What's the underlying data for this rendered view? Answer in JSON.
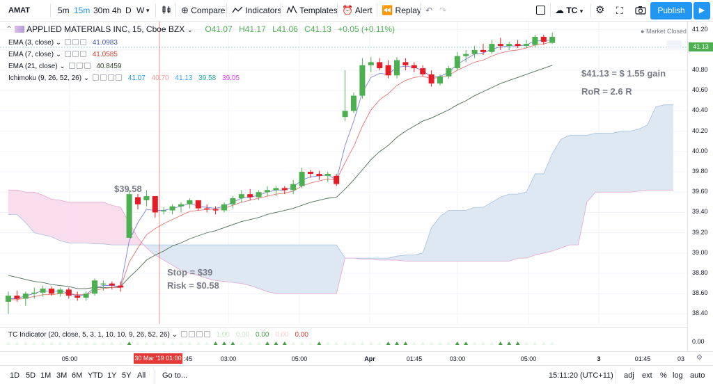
{
  "toolbar": {
    "symbol": "AMAT",
    "intervals": [
      "5m",
      "15m",
      "30m",
      "4h",
      "D",
      "W"
    ],
    "active_interval": "15m",
    "compare": "Compare",
    "indicators": "Indicators",
    "templates": "Templates",
    "alert": "Alert",
    "replay": "Replay",
    "account": "TC",
    "publish": "Publish"
  },
  "header": {
    "title": "APPLIED MATERIALS INC, 15, Cboe BZX",
    "open": "O41.07",
    "high": "H41.17",
    "low": "L41.06",
    "close": "C41.13",
    "change": "+0.05 (+0.11%)",
    "market_status": "Market Closed"
  },
  "studies": [
    {
      "label": "EMA (3, close)",
      "values": [
        "41.0983"
      ],
      "colors": [
        "#3f51b5"
      ]
    },
    {
      "label": "EMA (7, close)",
      "values": [
        "41.0585"
      ],
      "colors": [
        "#e53935"
      ]
    },
    {
      "label": "EMA (21, close)",
      "values": [
        "40.8459"
      ],
      "colors": [
        "#2e3b2e"
      ]
    },
    {
      "label": "Ichimoku (9, 26, 52, 26)",
      "values": [
        "41.07",
        "40.70",
        "41.13",
        "39.58",
        "39.05"
      ],
      "colors": [
        "#2196f3",
        "#ef9a9a",
        "#42a5f5",
        "#26a69a",
        "#e040fb"
      ]
    }
  ],
  "tc_indicator": {
    "label": "TC Indicator (20, close, 5, 3, 1, 10, 10, 9, 26, 52, 26)",
    "values": [
      "1.00",
      "0.00",
      "0.00",
      "0.00",
      "0.00"
    ],
    "colors": [
      "#c8e6c9",
      "#c8e6c9",
      "#43a047",
      "#ffcdd2",
      "#e53935"
    ],
    "axis_label": "0.00"
  },
  "annotations": {
    "entry_price": "$39.58",
    "stop": "Stop = $39",
    "risk": "Risk = $0.58",
    "gain": "$41.13 = $ 1.55 gain",
    "ror": "RoR = 2.6 R"
  },
  "time_axis": {
    "labels": [
      "05:00",
      "30 Mar '19  01:00",
      ":45",
      "03:00",
      "05:00",
      "Apr",
      "01:45",
      "03:00",
      "05:00",
      "3",
      "01:45",
      "03"
    ]
  },
  "bottom": {
    "ranges": [
      "1D",
      "5D",
      "1M",
      "3M",
      "6M",
      "YTD",
      "1Y",
      "5Y",
      "All"
    ],
    "goto": "Go to...",
    "time": "15:11:20 (UTC+11)",
    "options": [
      "adj",
      "ext",
      "%",
      "log",
      "auto"
    ]
  },
  "colors": {
    "up": "#4caf50",
    "down": "#e51c23",
    "cloud_bull": "#dde8f3",
    "cloud_bear": "#f8dded",
    "accent": "#2196f3"
  },
  "chart_data": {
    "type": "candlestick",
    "ylim": [
      38.3,
      41.28
    ],
    "yticks": [
      "41.20",
      "41.00",
      "40.80",
      "40.60",
      "40.40",
      "40.20",
      "40.00",
      "39.80",
      "39.60",
      "39.40",
      "39.20",
      "39.00",
      "38.80",
      "38.60",
      "38.40"
    ],
    "last_price": "41.13",
    "ohlc": [
      [
        38.52,
        38.62,
        38.4,
        38.58
      ],
      [
        38.58,
        38.63,
        38.52,
        38.55
      ],
      [
        38.55,
        38.62,
        38.48,
        38.6
      ],
      [
        38.6,
        38.66,
        38.55,
        38.61
      ],
      [
        38.61,
        38.68,
        38.57,
        38.65
      ],
      [
        38.65,
        38.67,
        38.58,
        38.6
      ],
      [
        38.6,
        38.66,
        38.57,
        38.64
      ],
      [
        38.64,
        38.66,
        38.55,
        38.58
      ],
      [
        38.58,
        38.62,
        38.53,
        38.56
      ],
      [
        38.56,
        38.62,
        38.53,
        38.6
      ],
      [
        38.6,
        38.75,
        38.58,
        38.73
      ],
      [
        38.7,
        38.73,
        38.63,
        38.7
      ],
      [
        38.7,
        38.72,
        38.64,
        38.68
      ],
      [
        38.68,
        38.72,
        38.62,
        38.66
      ],
      [
        39.15,
        39.62,
        39.15,
        39.58
      ],
      [
        39.55,
        39.58,
        39.43,
        39.48
      ],
      [
        39.52,
        39.62,
        39.46,
        39.56
      ],
      [
        39.56,
        39.56,
        39.35,
        39.4
      ],
      [
        39.42,
        39.45,
        39.38,
        39.42
      ],
      [
        39.42,
        39.48,
        39.38,
        39.46
      ],
      [
        39.46,
        39.5,
        39.4,
        39.48
      ],
      [
        39.48,
        39.54,
        39.44,
        39.52
      ],
      [
        39.52,
        39.52,
        39.42,
        39.44
      ],
      [
        39.44,
        39.48,
        39.4,
        39.43
      ],
      [
        39.43,
        39.46,
        39.38,
        39.42
      ],
      [
        39.42,
        39.5,
        39.4,
        39.48
      ],
      [
        39.48,
        39.56,
        39.44,
        39.54
      ],
      [
        39.54,
        39.62,
        39.5,
        39.58
      ],
      [
        39.58,
        39.63,
        39.52,
        39.55
      ],
      [
        39.55,
        39.62,
        39.52,
        39.6
      ],
      [
        39.6,
        39.66,
        39.56,
        39.62
      ],
      [
        39.62,
        39.66,
        39.56,
        39.64
      ],
      [
        39.64,
        39.66,
        39.58,
        39.62
      ],
      [
        39.62,
        39.72,
        39.58,
        39.68
      ],
      [
        39.66,
        39.84,
        39.64,
        39.8
      ],
      [
        39.8,
        39.82,
        39.74,
        39.78
      ],
      [
        39.78,
        39.81,
        39.72,
        39.76
      ],
      [
        39.76,
        39.8,
        39.7,
        39.78
      ],
      [
        39.76,
        39.78,
        39.66,
        39.68
      ],
      [
        40.34,
        40.8,
        40.3,
        40.4
      ],
      [
        40.4,
        40.58,
        40.38,
        40.55
      ],
      [
        40.55,
        40.92,
        40.52,
        40.85
      ],
      [
        40.85,
        40.93,
        40.78,
        40.88
      ],
      [
        40.88,
        40.92,
        40.8,
        40.82
      ],
      [
        40.85,
        40.9,
        40.72,
        40.75
      ],
      [
        40.75,
        40.93,
        40.72,
        40.9
      ],
      [
        40.88,
        40.92,
        40.8,
        40.85
      ],
      [
        40.85,
        40.88,
        40.78,
        40.82
      ],
      [
        40.82,
        40.85,
        40.74,
        40.76
      ],
      [
        40.76,
        40.8,
        40.64,
        40.67
      ],
      [
        40.67,
        40.76,
        40.65,
        40.74
      ],
      [
        40.74,
        40.84,
        40.72,
        40.82
      ],
      [
        40.82,
        40.98,
        40.8,
        40.94
      ],
      [
        40.94,
        41.0,
        40.88,
        40.96
      ],
      [
        40.96,
        41.04,
        40.92,
        41.0
      ],
      [
        41.0,
        41.06,
        40.95,
        40.98
      ],
      [
        40.98,
        41.1,
        40.96,
        41.06
      ],
      [
        41.06,
        41.12,
        41.0,
        41.04
      ],
      [
        41.04,
        41.08,
        41.0,
        41.06
      ],
      [
        41.06,
        41.1,
        41.02,
        41.04
      ],
      [
        41.04,
        41.1,
        41.02,
        41.06
      ],
      [
        41.05,
        41.15,
        41.03,
        41.13
      ],
      [
        41.13,
        41.15,
        41.05,
        41.08
      ],
      [
        41.07,
        41.17,
        41.06,
        41.13
      ]
    ],
    "ema3": [
      38.55,
      38.55,
      38.58,
      38.6,
      38.63,
      38.62,
      38.63,
      38.6,
      38.58,
      38.59,
      38.66,
      38.68,
      38.68,
      38.67,
      39.12,
      39.3,
      39.43,
      39.42,
      39.42,
      39.44,
      39.46,
      39.49,
      39.46,
      39.45,
      39.44,
      39.46,
      39.5,
      39.54,
      39.55,
      39.57,
      39.6,
      39.62,
      39.62,
      39.65,
      39.72,
      39.75,
      39.76,
      39.77,
      39.72,
      40.06,
      40.3,
      40.58,
      40.73,
      40.77,
      40.76,
      40.83,
      40.84,
      40.83,
      40.8,
      40.73,
      40.74,
      40.78,
      40.86,
      40.91,
      40.96,
      40.97,
      41.01,
      41.03,
      41.04,
      41.04,
      41.05,
      41.09,
      41.09,
      41.1
    ],
    "ema7": [
      38.54,
      38.54,
      38.56,
      38.57,
      38.59,
      38.59,
      38.6,
      38.6,
      38.59,
      38.59,
      38.63,
      38.65,
      38.66,
      38.66,
      38.91,
      39.05,
      39.18,
      39.24,
      39.29,
      39.33,
      39.37,
      39.41,
      39.42,
      39.43,
      39.43,
      39.44,
      39.47,
      39.5,
      39.52,
      39.54,
      39.56,
      39.58,
      39.59,
      39.61,
      39.66,
      39.69,
      39.71,
      39.73,
      39.72,
      39.89,
      40.05,
      40.25,
      40.41,
      40.51,
      40.57,
      40.65,
      40.7,
      40.73,
      40.74,
      40.72,
      40.73,
      40.75,
      40.8,
      40.84,
      40.88,
      40.9,
      40.94,
      40.97,
      40.99,
      41.0,
      41.02,
      41.05,
      41.06,
      41.08
    ],
    "ema21": [
      38.78,
      38.76,
      38.74,
      38.72,
      38.71,
      38.69,
      38.68,
      38.67,
      38.65,
      38.65,
      38.66,
      38.66,
      38.66,
      38.67,
      38.76,
      38.84,
      38.93,
      38.98,
      39.02,
      39.07,
      39.1,
      39.14,
      39.17,
      39.2,
      39.22,
      39.25,
      39.28,
      39.31,
      39.33,
      39.35,
      39.38,
      39.4,
      39.42,
      39.44,
      39.47,
      39.5,
      39.52,
      39.54,
      39.55,
      39.63,
      39.72,
      39.82,
      39.92,
      40.0,
      40.06,
      40.14,
      40.2,
      40.25,
      40.3,
      40.33,
      40.37,
      40.41,
      40.46,
      40.5,
      40.55,
      40.59,
      40.63,
      40.67,
      40.7,
      40.73,
      40.76,
      40.79,
      40.82,
      40.85
    ],
    "span_a": [
      39.38,
      39.38,
      39.3,
      39.2,
      39.18,
      39.16,
      39.12,
      39.1,
      39.1,
      39.1,
      39.09,
      39.09,
      39.08,
      39.08,
      39.08,
      39.08,
      39.08,
      39.08,
      39.08,
      39.08,
      39.08,
      39.08,
      39.08,
      39.08,
      39.08,
      39.08,
      39.08,
      39.08,
      39.08,
      39.08,
      39.08,
      39.08,
      39.08,
      39.08,
      39.08,
      39.08,
      39.08,
      39.08,
      39.08,
      38.95,
      38.95,
      38.95,
      38.95,
      38.95,
      38.95,
      38.97,
      38.98,
      38.98,
      39.0,
      39.25,
      39.36,
      39.42,
      39.42,
      39.42,
      39.45,
      39.45,
      39.5,
      39.55,
      39.58,
      39.58,
      39.6,
      39.78,
      39.78,
      39.98,
      40.12,
      40.16,
      40.16,
      40.16,
      40.18,
      40.18,
      40.18,
      40.2,
      40.2,
      40.22,
      40.26,
      40.44,
      40.46,
      40.46
    ],
    "span_b": [
      39.62,
      39.62,
      39.6,
      39.6,
      39.57,
      39.53,
      39.52,
      39.5,
      39.5,
      39.5,
      39.5,
      39.5,
      39.47,
      39.45,
      39.3,
      39.15,
      39.05,
      38.98,
      38.93,
      38.88,
      38.83,
      38.8,
      38.78,
      38.75,
      38.73,
      38.72,
      38.71,
      38.7,
      38.68,
      38.65,
      38.62,
      38.6,
      38.6,
      38.6,
      38.6,
      38.6,
      38.6,
      38.6,
      38.6,
      38.95,
      38.95,
      38.94,
      38.94,
      38.93,
      38.93,
      38.93,
      38.92,
      38.92,
      38.92,
      38.92,
      38.92,
      38.92,
      38.92,
      38.92,
      38.92,
      38.92,
      38.92,
      38.92,
      38.92,
      38.95,
      38.95,
      38.98,
      39.0,
      39.02,
      39.05,
      39.08,
      39.08,
      39.5,
      39.6,
      39.6,
      39.6,
      39.6,
      39.6,
      39.61,
      39.62,
      39.62,
      39.62,
      39.62
    ],
    "stop_level": 39.0,
    "tc_signals": [
      14,
      24,
      25,
      26,
      30,
      31,
      32,
      36,
      44,
      45,
      46,
      52,
      53,
      57,
      58,
      59
    ]
  }
}
